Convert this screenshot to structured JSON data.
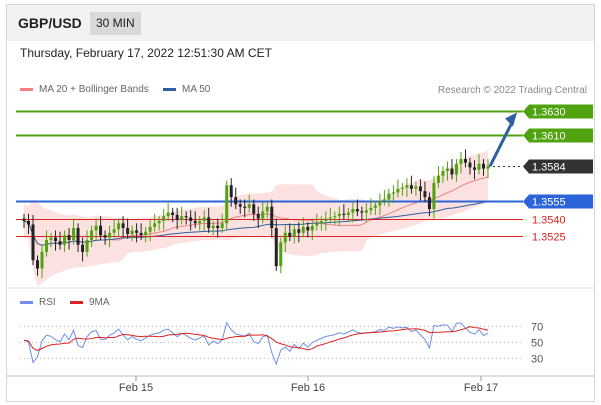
{
  "header": {
    "symbol": "GBP/USD",
    "timeframe": "30 MIN",
    "date": "Thursday, February 17, 2022 12:51:30 AM CET",
    "credit": "Research © 2022 Trading Central"
  },
  "legend_main": [
    {
      "label": "MA 20 + Bollinger Bands",
      "color": "#f08080"
    },
    {
      "label": "MA 50",
      "color": "#2f5f9e"
    }
  ],
  "legend_rsi": [
    {
      "label": "RSI",
      "color": "#6f8fe6"
    },
    {
      "label": "9MA",
      "color": "#dd2222"
    }
  ],
  "chart_data": [
    {
      "type": "candlestick",
      "x_labels": [
        "Feb 15",
        "Feb 16",
        "Feb 17"
      ],
      "ylim": [
        1.3485,
        1.3643
      ],
      "price_levels": [
        {
          "value": 1.363,
          "label": "1.3630",
          "style": "resistance",
          "color": "#4fa30f"
        },
        {
          "value": 1.361,
          "label": "1.3610",
          "style": "resistance",
          "color": "#4fa30f"
        },
        {
          "value": 1.3584,
          "label": "1.3584",
          "style": "last",
          "color": "#333333"
        },
        {
          "value": 1.3555,
          "label": "1.3555",
          "style": "pivot",
          "color": "#2b63d9"
        },
        {
          "value": 1.354,
          "label": "1.3540",
          "style": "support",
          "color": "#dd2222"
        },
        {
          "value": 1.3525,
          "label": "1.3525",
          "style": "support",
          "color": "#dd2222"
        }
      ],
      "close_series": [
        1.3538,
        1.3535,
        1.3505,
        1.3498,
        1.3512,
        1.3522,
        1.3524,
        1.3521,
        1.3518,
        1.3526,
        1.3522,
        1.3532,
        1.3518,
        1.3512,
        1.3522,
        1.353,
        1.3534,
        1.3526,
        1.3524,
        1.3528,
        1.3531,
        1.3536,
        1.3532,
        1.3527,
        1.353,
        1.3528,
        1.3526,
        1.3529,
        1.3533,
        1.3536,
        1.3538,
        1.3542,
        1.3545,
        1.3543,
        1.3539,
        1.3542,
        1.3541,
        1.3538,
        1.3536,
        1.3538,
        1.3541,
        1.3532,
        1.3534,
        1.3532,
        1.3536,
        1.3568,
        1.3558,
        1.3552,
        1.355,
        1.3549,
        1.3552,
        1.3544,
        1.354,
        1.3546,
        1.355,
        1.3532,
        1.35,
        1.352,
        1.3528,
        1.3525,
        1.3531,
        1.3528,
        1.3533,
        1.353,
        1.3534,
        1.3536,
        1.3538,
        1.354,
        1.3541,
        1.3542,
        1.3544,
        1.3543,
        1.3545,
        1.3548,
        1.3546,
        1.3545,
        1.3547,
        1.3549,
        1.3551,
        1.3555,
        1.3556,
        1.3561,
        1.3562,
        1.3565,
        1.3566,
        1.3568,
        1.3565,
        1.3567,
        1.3563,
        1.3558,
        1.3548,
        1.357,
        1.3576,
        1.358,
        1.3582,
        1.3577,
        1.3586,
        1.359,
        1.3587,
        1.3583,
        1.3581,
        1.3586,
        1.3582,
        1.3584
      ],
      "rsi": {
        "levels": [
          70,
          50,
          30
        ],
        "ylim": [
          12,
          80
        ]
      }
    }
  ]
}
